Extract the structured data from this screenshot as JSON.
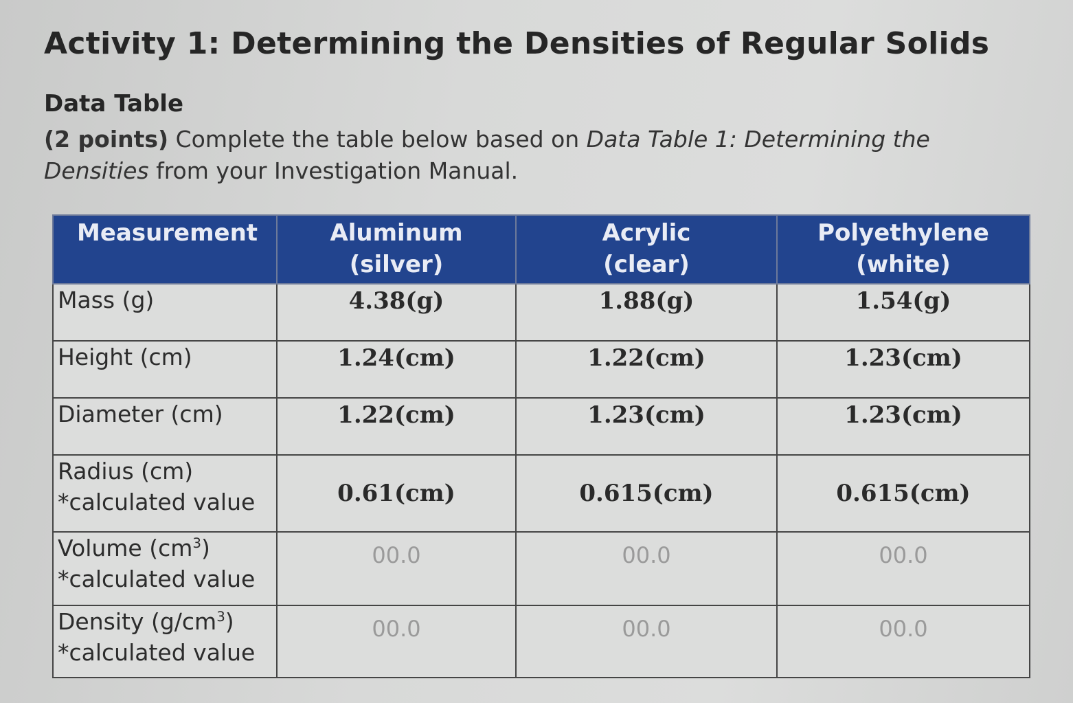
{
  "title": "Activity 1: Determining the Densities of Regular Solids",
  "section": "Data Table",
  "instructions": {
    "points": "(2 points)",
    "text_before": " Complete the table below based on ",
    "reference": "Data Table 1: Determining the Densities",
    "text_after": " from your Investigation Manual."
  },
  "table": {
    "headers": {
      "measurement": "Measurement",
      "aluminum": "Aluminum",
      "aluminum_sub": "(silver)",
      "acrylic": "Acrylic",
      "acrylic_sub": "(clear)",
      "polyethylene": "Polyethylene",
      "polyethylene_sub": "(white)"
    },
    "rows": {
      "mass": {
        "label": "Mass (g)",
        "aluminum": "4.38(g)",
        "acrylic": "1.88(g)",
        "polyethylene": "1.54(g)"
      },
      "height": {
        "label": "Height (cm)",
        "aluminum": "1.24(cm)",
        "acrylic": "1.22(cm)",
        "polyethylene": "1.23(cm)"
      },
      "diameter": {
        "label": "Diameter (cm)",
        "aluminum": "1.22(cm)",
        "acrylic": "1.23(cm)",
        "polyethylene": "1.23(cm)"
      },
      "radius": {
        "label": "Radius (cm)",
        "note": "*calculated value",
        "aluminum": "0.61(cm)",
        "acrylic": "0.615(cm)",
        "polyethylene": "0.615(cm)"
      },
      "volume": {
        "label_main": "Volume (cm",
        "label_sup": "3",
        "label_end": ")",
        "note": "*calculated value",
        "aluminum": "00.0",
        "acrylic": "00.0",
        "polyethylene": "00.0"
      },
      "density": {
        "label_main": "Density (g/cm",
        "label_sup": "3",
        "label_end": ")",
        "note": "*calculated value",
        "aluminum": "00.0",
        "acrylic": "00.0",
        "polyethylene": "00.0"
      }
    }
  }
}
